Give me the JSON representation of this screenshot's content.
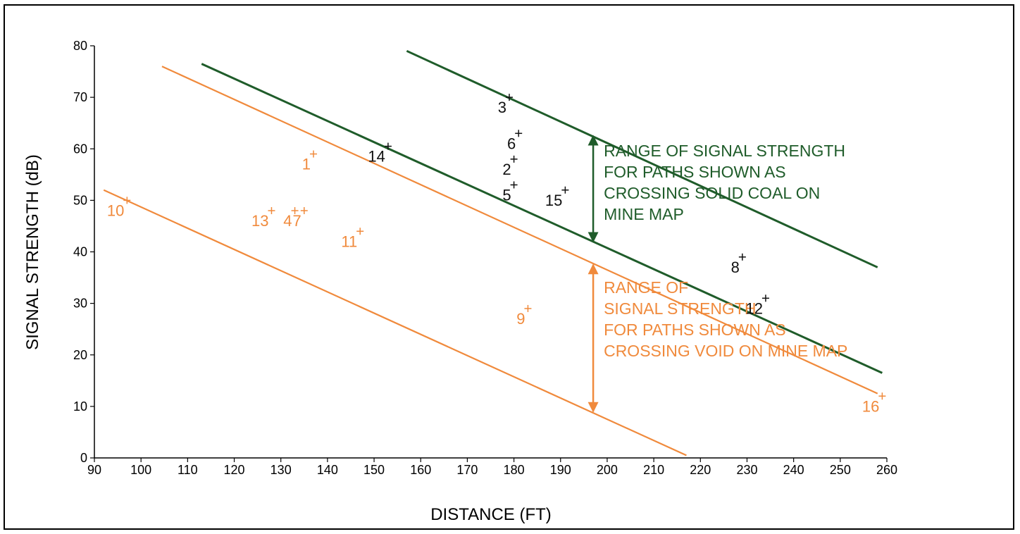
{
  "chart_data": {
    "type": "scatter",
    "xlabel": "DISTANCE (FT)",
    "ylabel": "SIGNAL STRENGTH (dB)",
    "xlim": [
      90,
      260
    ],
    "ylim": [
      0,
      80
    ],
    "x_ticks": [
      90,
      100,
      110,
      120,
      130,
      140,
      150,
      160,
      170,
      180,
      190,
      200,
      210,
      220,
      230,
      240,
      250,
      260
    ],
    "y_ticks": [
      0,
      10,
      20,
      30,
      40,
      50,
      60,
      70,
      80
    ],
    "grid": false,
    "colors": {
      "solid": "#1f5c2a",
      "void": "#f08a3c"
    },
    "points": [
      {
        "label": "1",
        "x": 137,
        "y": 59,
        "group": "void"
      },
      {
        "label": "2",
        "x": 180,
        "y": 58,
        "group": "solid"
      },
      {
        "label": "3",
        "x": 179,
        "y": 70,
        "group": "solid"
      },
      {
        "label": "4",
        "x": 133,
        "y": 48,
        "group": "void"
      },
      {
        "label": "5",
        "x": 180,
        "y": 53,
        "group": "solid"
      },
      {
        "label": "6",
        "x": 181,
        "y": 63,
        "group": "solid"
      },
      {
        "label": "7",
        "x": 135,
        "y": 48,
        "group": "void"
      },
      {
        "label": "8",
        "x": 229,
        "y": 39,
        "group": "solid"
      },
      {
        "label": "9",
        "x": 183,
        "y": 29,
        "group": "void"
      },
      {
        "label": "10",
        "x": 97,
        "y": 50,
        "group": "void"
      },
      {
        "label": "11",
        "x": 147,
        "y": 44,
        "group": "void"
      },
      {
        "label": "12",
        "x": 234,
        "y": 31,
        "group": "solid"
      },
      {
        "label": "13",
        "x": 128,
        "y": 48,
        "group": "void"
      },
      {
        "label": "14",
        "x": 153,
        "y": 60.5,
        "group": "solid"
      },
      {
        "label": "15",
        "x": 191,
        "y": 52,
        "group": "solid"
      },
      {
        "label": "16",
        "x": 259,
        "y": 12,
        "group": "void"
      }
    ],
    "lines": [
      {
        "group": "solid",
        "from": [
          113,
          76.5
        ],
        "to": [
          259,
          16.5
        ]
      },
      {
        "group": "solid",
        "from": [
          157,
          79
        ],
        "to": [
          258,
          37
        ]
      },
      {
        "group": "void",
        "from": [
          104.5,
          76
        ],
        "to": [
          258,
          12.5
        ]
      },
      {
        "group": "void",
        "from": [
          92,
          52
        ],
        "to": [
          217,
          0.5
        ]
      }
    ],
    "ranges": [
      {
        "group": "solid",
        "x": 197,
        "y_from": 42,
        "y_to": 62.5,
        "label": [
          "RANGE OF SIGNAL STRENGTH",
          "FOR PATHS SHOWN AS",
          "CROSSING SOLID COAL ON",
          "MINE MAP"
        ]
      },
      {
        "group": "void",
        "x": 197,
        "y_from": 9,
        "y_to": 37.5,
        "label": [
          "RANGE OF",
          "SIGNAL STRENGTH",
          "FOR PATHS SHOWN AS",
          "CROSSING VOID ON MINE MAP"
        ]
      }
    ]
  }
}
